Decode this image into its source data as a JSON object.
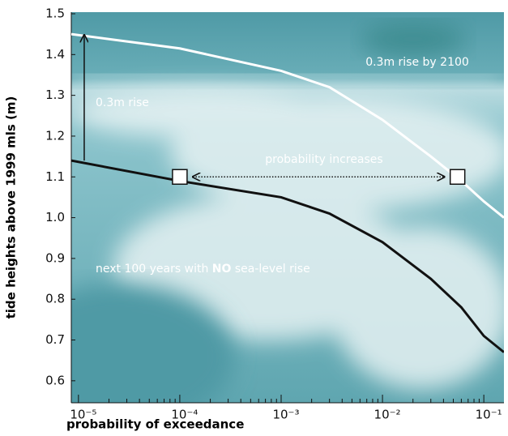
{
  "chart_data": {
    "type": "line",
    "x_label": "probability of exceedance",
    "y_label": "tide heights above 1999 mls (m)",
    "xscale": "log",
    "minor_ticks": true,
    "xlim": [
      8.5e-06,
      0.158
    ],
    "xticks": [
      {
        "value": 1e-05,
        "label": "10⁻⁵"
      },
      {
        "value": 0.0001,
        "label": "10⁻⁴"
      },
      {
        "value": 0.001,
        "label": "10⁻³"
      },
      {
        "value": 0.01,
        "label": "10⁻²"
      },
      {
        "value": 0.1,
        "label": "10⁻¹"
      }
    ],
    "ylim": [
      0.55,
      1.5
    ],
    "yticks": [
      0.6,
      0.7,
      0.8,
      0.9,
      {
        "value": 1,
        "label": "1.0"
      },
      1.1,
      1.2,
      1.3,
      1.4,
      1.5
    ],
    "series": [
      {
        "color": "#111111",
        "x": [
          8.5e-06,
          0.0001,
          0.001,
          0.003,
          0.01,
          0.03,
          0.06,
          0.1,
          0.158
        ],
        "values": [
          1.14,
          1.09,
          1.05,
          1.01,
          0.94,
          0.85,
          0.78,
          0.71,
          0.67
        ]
      },
      {
        "color": "#ffffff",
        "x": [
          8.5e-06,
          0.0001,
          0.001,
          0.003,
          0.01,
          0.03,
          0.06,
          0.1,
          0.158
        ],
        "values": [
          1.45,
          1.415,
          1.36,
          1.32,
          1.24,
          1.15,
          1.09,
          1.04,
          1.0
        ]
      }
    ],
    "markers": [
      {
        "x": 0.0001,
        "y": 1.1
      },
      {
        "x": 0.055,
        "y": 1.1
      }
    ],
    "rise_arrow": {
      "x": 1.14e-05,
      "from": 1.14,
      "to": 1.45
    },
    "annotations": {
      "rise_2100": "0.3m rise by 2100",
      "rise": "0.3m rise",
      "probability": "probability increases",
      "no_rise": [
        "next 100 years with ",
        "NO",
        " sea-level rise"
      ]
    }
  }
}
